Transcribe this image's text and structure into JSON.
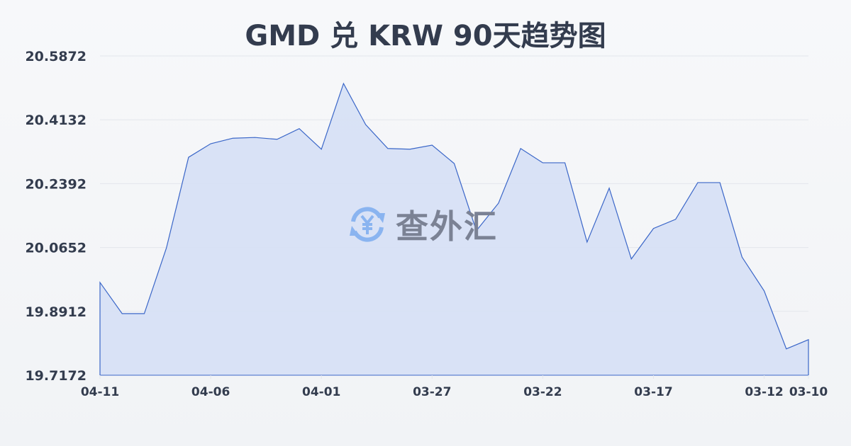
{
  "title": "GMD 兑 KRW 90天趋势图",
  "watermark": {
    "text": "查外汇",
    "icon": "yuan-exchange-icon",
    "icon_color": "#8ab4f0"
  },
  "colors": {
    "line": "#3a66c8",
    "fill": "#d6e0f5",
    "grid": "#e3e6ec",
    "text": "#333c4e"
  },
  "chart_data": {
    "type": "area",
    "title": "GMD 兑 KRW 90天趋势图",
    "xlabel": "",
    "ylabel": "",
    "ylim": [
      19.7172,
      20.5872
    ],
    "yticks": [
      "20.5872",
      "20.4132",
      "20.2392",
      "20.0652",
      "19.8912",
      "19.7172"
    ],
    "xticks": [
      "04-11",
      "04-06",
      "04-01",
      "03-27",
      "03-22",
      "03-17",
      "03-12",
      "03-10"
    ],
    "grid": true,
    "x": [
      "04-11",
      "04-10",
      "04-09",
      "04-08",
      "04-07",
      "04-06",
      "04-05",
      "04-04",
      "04-03",
      "04-02",
      "04-01",
      "03-31",
      "03-30",
      "03-29",
      "03-28",
      "03-27",
      "03-26",
      "03-25",
      "03-24",
      "03-23",
      "03-22",
      "03-21",
      "03-20",
      "03-19",
      "03-18",
      "03-17",
      "03-16",
      "03-15",
      "03-14",
      "03-13",
      "03-12",
      "03-11",
      "03-10"
    ],
    "values": [
      19.97,
      19.885,
      19.885,
      20.064,
      20.311,
      20.348,
      20.363,
      20.365,
      20.36,
      20.389,
      20.333,
      20.512,
      20.4,
      20.335,
      20.333,
      20.344,
      20.294,
      20.111,
      20.186,
      20.335,
      20.296,
      20.296,
      20.08,
      20.227,
      20.034,
      20.117,
      20.142,
      20.242,
      20.242,
      20.039,
      19.947,
      19.789,
      19.814
    ]
  }
}
